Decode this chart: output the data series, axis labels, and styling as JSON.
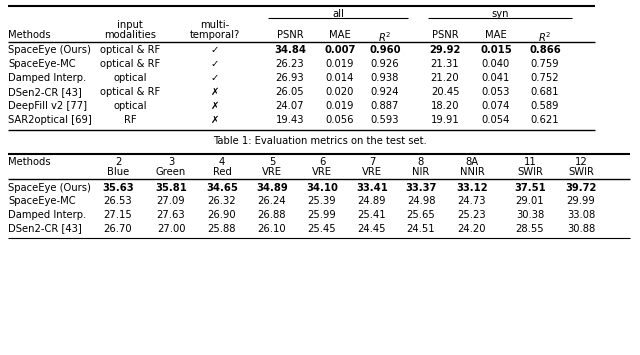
{
  "table1_rows": [
    {
      "method": "SpaceEye (Ours)",
      "modality": "optical & RF",
      "multi": "✓",
      "all_psnr": "34.84",
      "all_mae": "0.007",
      "all_r2": "0.960",
      "syn_psnr": "29.92",
      "syn_mae": "0.015",
      "syn_r2": "0.866",
      "bold": true
    },
    {
      "method": "SpaceEye-MC",
      "modality": "optical & RF",
      "multi": "✓",
      "all_psnr": "26.23",
      "all_mae": "0.019",
      "all_r2": "0.926",
      "syn_psnr": "21.31",
      "syn_mae": "0.040",
      "syn_r2": "0.759",
      "bold": false
    },
    {
      "method": "Damped Interp.",
      "modality": "optical",
      "multi": "✓",
      "all_psnr": "26.93",
      "all_mae": "0.014",
      "all_r2": "0.938",
      "syn_psnr": "21.20",
      "syn_mae": "0.041",
      "syn_r2": "0.752",
      "bold": false
    },
    {
      "method": "DSen2-CR [43]",
      "modality": "optical & RF",
      "multi": "✗",
      "all_psnr": "26.05",
      "all_mae": "0.020",
      "all_r2": "0.924",
      "syn_psnr": "20.45",
      "syn_mae": "0.053",
      "syn_r2": "0.681",
      "bold": false
    },
    {
      "method": "DeepFill v2 [77]",
      "modality": "optical",
      "multi": "✗",
      "all_psnr": "24.07",
      "all_mae": "0.019",
      "all_r2": "0.887",
      "syn_psnr": "18.20",
      "syn_mae": "0.074",
      "syn_r2": "0.589",
      "bold": false
    },
    {
      "method": "SAR2optical [69]",
      "modality": "RF",
      "multi": "✗",
      "all_psnr": "19.43",
      "all_mae": "0.056",
      "all_r2": "0.593",
      "syn_psnr": "19.91",
      "syn_mae": "0.054",
      "syn_r2": "0.621",
      "bold": false
    }
  ],
  "table2_rows": [
    {
      "method": "SpaceEye (Ours)",
      "vals": [
        "35.63",
        "35.81",
        "34.65",
        "34.89",
        "34.10",
        "33.41",
        "33.37",
        "33.12",
        "37.51",
        "39.72"
      ],
      "bold": true
    },
    {
      "method": "SpaceEye-MC",
      "vals": [
        "26.53",
        "27.09",
        "26.32",
        "26.24",
        "25.39",
        "24.89",
        "24.98",
        "24.73",
        "29.01",
        "29.99"
      ],
      "bold": false
    },
    {
      "method": "Damped Interp.",
      "vals": [
        "27.15",
        "27.63",
        "26.90",
        "26.88",
        "25.99",
        "25.41",
        "25.65",
        "25.23",
        "30.38",
        "33.08"
      ],
      "bold": false
    },
    {
      "method": "DSen2-CR [43]",
      "vals": [
        "26.70",
        "27.00",
        "25.88",
        "26.10",
        "25.45",
        "24.45",
        "24.51",
        "24.20",
        "28.55",
        "30.88"
      ],
      "bold": false
    }
  ],
  "caption": "Table 1: Evaluation metrics on the test set.",
  "num_labels": [
    "2",
    "3",
    "4",
    "5",
    "6",
    "7",
    "8",
    "8A",
    "11",
    "12"
  ],
  "band_labels": [
    "Blue",
    "Green",
    "Red",
    "VRE",
    "VRE",
    "VRE",
    "NIR",
    "NNIR",
    "SWIR",
    "SWIR"
  ],
  "bg_color": "#ffffff",
  "text_color": "#000000"
}
